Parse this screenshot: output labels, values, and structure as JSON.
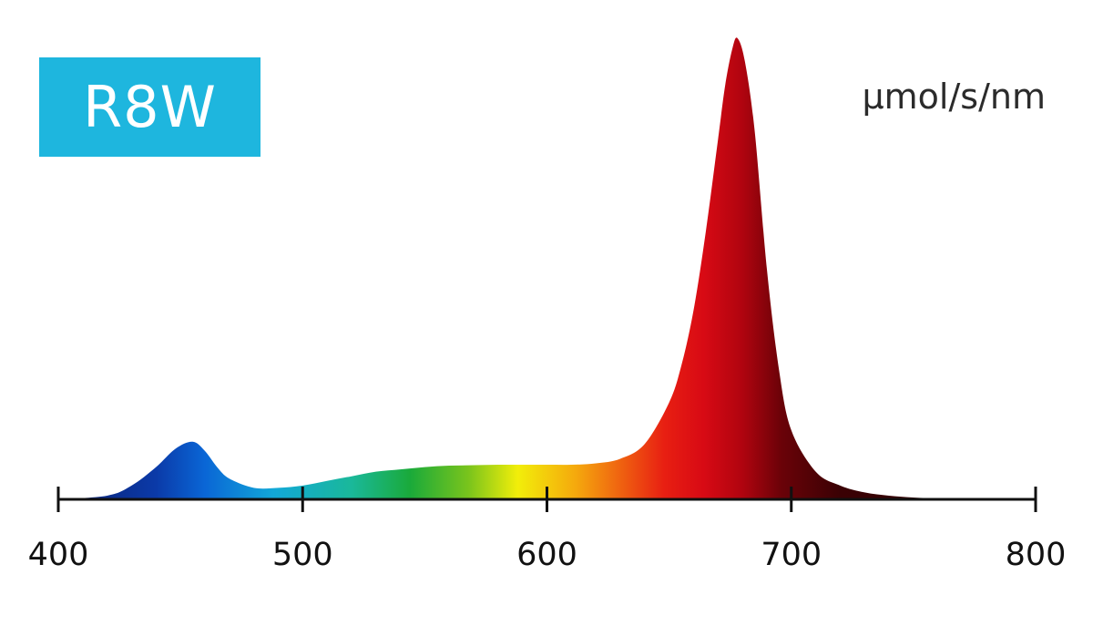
{
  "badge": {
    "label": "R8W",
    "color": "#1eb6de"
  },
  "unit_label": "µmol/s/nm",
  "chart_data": {
    "type": "area",
    "title": "",
    "xlabel": "",
    "ylabel": "µmol/s/nm",
    "xlim": [
      400,
      800
    ],
    "ylim": [
      0,
      1.0
    ],
    "x_ticks": [
      400,
      500,
      600,
      700,
      800
    ],
    "grid": false,
    "fill": "wavelength-spectrum-gradient",
    "series": [
      {
        "x": [
          400,
          420,
          430,
          440,
          448,
          455,
          460,
          465,
          470,
          480,
          490,
          500,
          510,
          520,
          530,
          540,
          550,
          560,
          570,
          580,
          590,
          600,
          610,
          620,
          630,
          640,
          650,
          655,
          660,
          665,
          670,
          673,
          676,
          678,
          681,
          685,
          690,
          695,
          700,
          710,
          720,
          730,
          740,
          750,
          760,
          770,
          780,
          800
        ],
        "values": [
          0.0,
          0.008,
          0.03,
          0.07,
          0.11,
          0.125,
          0.105,
          0.07,
          0.045,
          0.025,
          0.025,
          0.03,
          0.04,
          0.05,
          0.06,
          0.065,
          0.07,
          0.073,
          0.074,
          0.075,
          0.075,
          0.075,
          0.075,
          0.078,
          0.088,
          0.12,
          0.21,
          0.29,
          0.41,
          0.58,
          0.78,
          0.9,
          0.98,
          1.0,
          0.95,
          0.8,
          0.5,
          0.28,
          0.15,
          0.06,
          0.03,
          0.015,
          0.008,
          0.004,
          0.002,
          0.001,
          0.0,
          0.0
        ]
      }
    ]
  }
}
